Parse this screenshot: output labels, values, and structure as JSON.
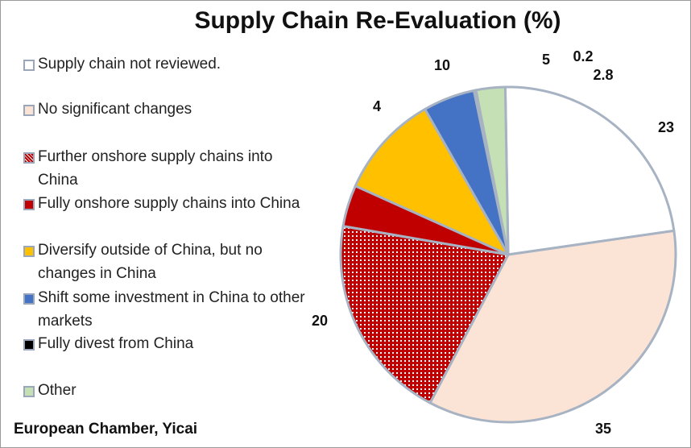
{
  "chart_data": {
    "type": "pie",
    "title": "Supply Chain Re-Evaluation (%)",
    "source": "European Chamber, Yicai",
    "legend_position": "left",
    "slices": [
      {
        "label": "Supply chain not reviewed.",
        "value": 23,
        "color": "#ffffff",
        "pattern": "solid"
      },
      {
        "label": "No significant changes",
        "value": 35,
        "color": "#fbe4d6",
        "pattern": "solid"
      },
      {
        "label": "Further onshore supply chains into China",
        "value": 20,
        "color": "#c00000",
        "pattern": "crosshatch"
      },
      {
        "label": "Fully onshore supply chains into China",
        "value": 4,
        "color": "#c00000",
        "pattern": "solid"
      },
      {
        "label": "Diversify outside of China, but no changes in China",
        "value": 10,
        "color": "#ffc000",
        "pattern": "solid"
      },
      {
        "label": "Shift some investment in China to other markets",
        "value": 5,
        "color": "#4472c4",
        "pattern": "solid"
      },
      {
        "label": "Fully divest from China",
        "value": 0.2,
        "color": "#000000",
        "pattern": "solid"
      },
      {
        "label": "Other",
        "value": 2.8,
        "color": "#c5e0b4",
        "pattern": "solid"
      }
    ],
    "data_labels": [
      "23",
      "35",
      "20",
      "4",
      "10",
      "5",
      "0.2",
      "2.8"
    ],
    "border_color": "#a7b3c3"
  }
}
